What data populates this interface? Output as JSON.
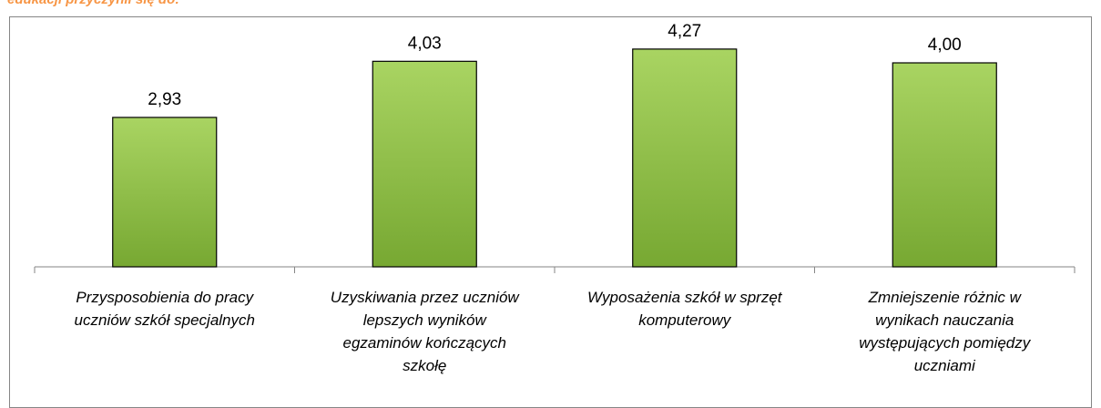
{
  "chart_data": {
    "type": "bar",
    "title": "edukacji przyczynił się do:",
    "categories": [
      "Przysposobienia do pracy uczniów szkół specjalnych",
      "Uzyskiwania przez uczniów lepszych wyników egzaminów kończących szkołę",
      "Wyposażenia szkół w sprzęt komputerowy",
      "Zmniejszenie różnic w wynikach nauczania występujących pomiędzy uczniami"
    ],
    "values": [
      2.93,
      4.03,
      4.27,
      4.0
    ],
    "value_labels": [
      "2,93",
      "4,03",
      "4,27",
      "4,00"
    ],
    "color": "#92c047"
  }
}
